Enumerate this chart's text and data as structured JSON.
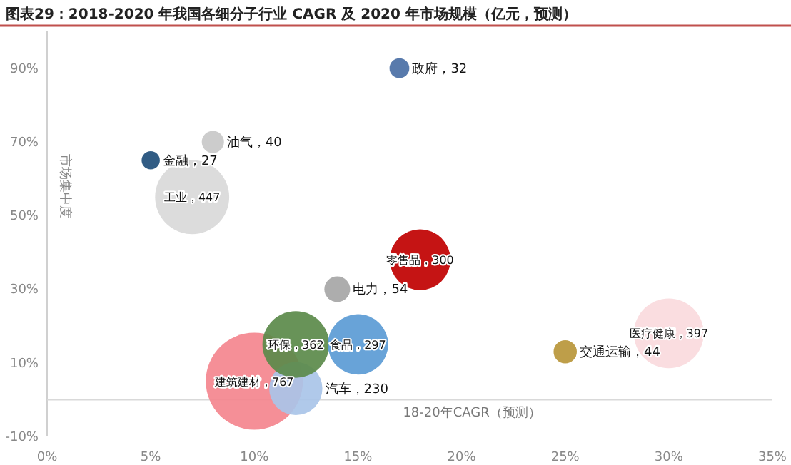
{
  "chart_data": {
    "type": "bubble",
    "title": "图表29：2018-2020 年我国各细分子行业 CAGR 及 2020 年市场规模（亿元，预测）",
    "xlabel": "18-20年CAGR（预测）",
    "ylabel": "市场集中度",
    "xlim": [
      0,
      35
    ],
    "ylim": [
      -10,
      100
    ],
    "xticks": [
      {
        "value": 0,
        "label": "0%"
      },
      {
        "value": 5,
        "label": "5%"
      },
      {
        "value": 10,
        "label": "10%"
      },
      {
        "value": 15,
        "label": "15%"
      },
      {
        "value": 20,
        "label": "20%"
      },
      {
        "value": 25,
        "label": "25%"
      },
      {
        "value": 30,
        "label": "30%"
      },
      {
        "value": 35,
        "label": "35%"
      }
    ],
    "yticks": [
      {
        "value": -10,
        "label": "-10%"
      },
      {
        "value": 10,
        "label": "10%"
      },
      {
        "value": 30,
        "label": "30%"
      },
      {
        "value": 50,
        "label": "50%"
      },
      {
        "value": 70,
        "label": "70%"
      },
      {
        "value": 90,
        "label": "90%"
      }
    ],
    "grid": false,
    "ref_lines": [
      {
        "axis": "y",
        "value": 0,
        "color": "#d9d9d9"
      }
    ],
    "series": [
      {
        "color": "#4a6fa5",
        "x": [
          17
        ],
        "values": [
          90
        ],
        "sizes": [
          32
        ],
        "value_labels": [
          "政府，32"
        ]
      },
      {
        "color": "#c8c8c8",
        "x": [
          8
        ],
        "values": [
          70
        ],
        "sizes": [
          40
        ],
        "value_labels": [
          "油气，40"
        ]
      },
      {
        "color": "#1f4e79",
        "x": [
          5
        ],
        "values": [
          65
        ],
        "sizes": [
          27
        ],
        "value_labels": [
          "金融，27"
        ]
      },
      {
        "color": "#d9d9d9",
        "x": [
          7
        ],
        "values": [
          55
        ],
        "sizes": [
          447
        ],
        "value_labels": [
          "工业，447"
        ]
      },
      {
        "color": "#c00000",
        "x": [
          18
        ],
        "values": [
          38
        ],
        "sizes": [
          300
        ],
        "value_labels": [
          "零售品，300"
        ]
      },
      {
        "color": "#a6a6a6",
        "x": [
          14
        ],
        "values": [
          30
        ],
        "sizes": [
          54
        ],
        "value_labels": [
          "电力，54"
        ]
      },
      {
        "color": "#f4858e",
        "x": [
          10
        ],
        "values": [
          5
        ],
        "sizes": [
          767
        ],
        "value_labels": [
          "建筑建材，767"
        ]
      },
      {
        "color": "#a9c4e8",
        "x": [
          12
        ],
        "values": [
          3
        ],
        "sizes": [
          230
        ],
        "value_labels": [
          "汽车，230"
        ]
      },
      {
        "color": "#5b8a4a",
        "x": [
          12
        ],
        "values": [
          15
        ],
        "sizes": [
          362
        ],
        "value_labels": [
          "环保，362"
        ]
      },
      {
        "color": "#5b9bd5",
        "x": [
          15
        ],
        "values": [
          15
        ],
        "sizes": [
          297
        ],
        "value_labels": [
          "食品，297"
        ]
      },
      {
        "color": "#fadadd",
        "x": [
          30
        ],
        "values": [
          18
        ],
        "sizes": [
          397
        ],
        "value_labels": [
          "医疗健康，397"
        ]
      },
      {
        "color": "#b8963a",
        "x": [
          25
        ],
        "values": [
          13
        ],
        "sizes": [
          44
        ],
        "value_labels": [
          "交通运输，44"
        ]
      }
    ]
  }
}
